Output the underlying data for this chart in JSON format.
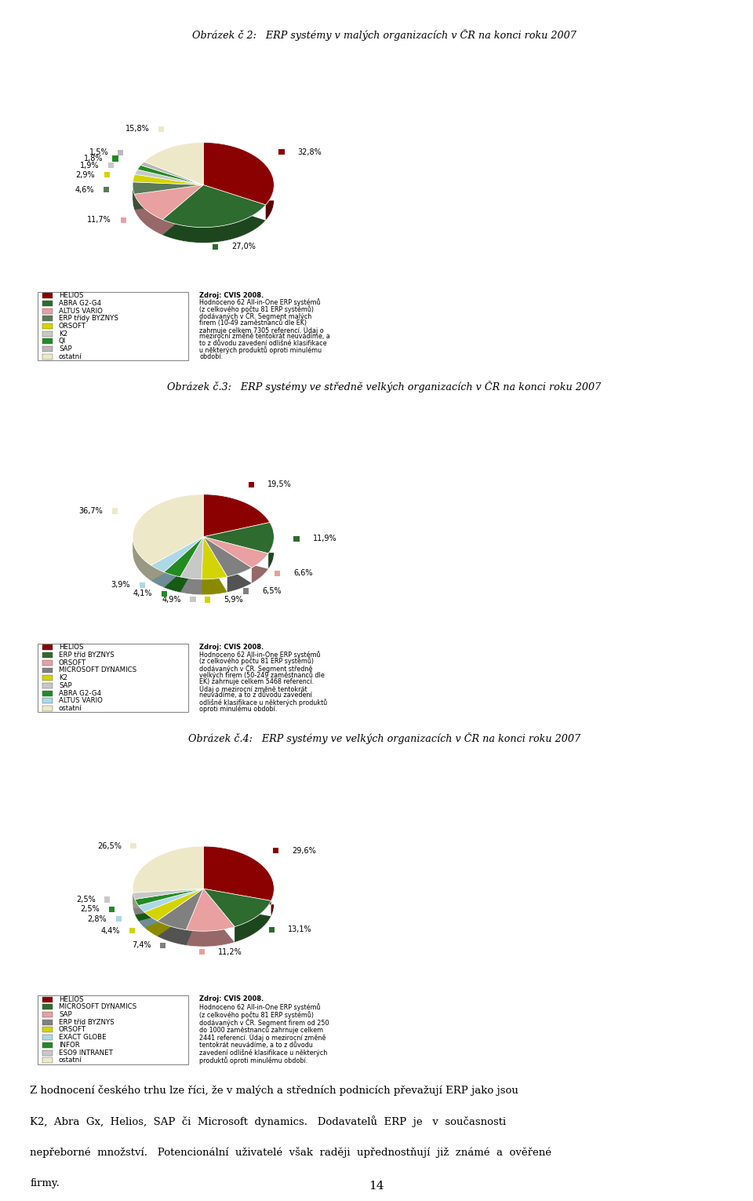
{
  "title1": "Obrázek č 2:   ERP systémy v malých organizacích v ČR na konci roku 2007",
  "title2": "Obrázek č.3:   ERP systémy ve středně velkých organizacích v ČR na konci roku 2007",
  "title3": "Obrázek č.4:   ERP systémy ve velkých organizacích v ČR na konci roku 2007",
  "pie1_values": [
    32.8,
    27.0,
    11.7,
    4.6,
    2.9,
    1.9,
    1.8,
    1.5,
    15.8
  ],
  "pie1_labels": [
    "32,8%",
    "27,0%",
    "11,7%",
    "4,6%",
    "2,9%",
    "1,9%",
    "1,8%",
    "1,5%",
    "15,8%"
  ],
  "pie1_colors": [
    "#8B0000",
    "#2E6B2E",
    "#E8A0A0",
    "#5A7A5A",
    "#D4D400",
    "#C8C8C8",
    "#228B22",
    "#B8B8B8",
    "#EDE8C8"
  ],
  "pie1_legend": [
    "HELIOS",
    "ABRA G2-G4",
    "ALTUS VARIO",
    "ERP třídy BYZNYS",
    "ORSOFT",
    "K2",
    "QI",
    "SAP",
    "ostatní"
  ],
  "pie1_legend_colors": [
    "#8B0000",
    "#2E6B2E",
    "#E8A0A0",
    "#5A7A5A",
    "#D4D400",
    "#C8C8C8",
    "#228B22",
    "#B8B8B8",
    "#EDE8C8"
  ],
  "pie1_source": "Zdroj: CVIS 2008.\nHodnoceno 62 All-in-One ERP systémů\n(z celkového počtu 81 ERP systémů)\ndodávaných v ČR. Segment malých\nfirem (10-49 zaměstnanců dle EK)\nzahrnuje celkem 7305 referencí. Údaj o\nmezirocní změně tentokrát neuvádíme, a\nto z důvodu zavedení odlišné klasifikace\nu některých produktů oproti minulému\nobdobí.",
  "pie2_values": [
    19.5,
    11.9,
    6.6,
    6.5,
    5.9,
    4.9,
    4.1,
    3.9,
    36.7
  ],
  "pie2_labels": [
    "19,5%",
    "11,9%",
    "6,6%",
    "6,5%",
    "5,9%",
    "4,9%",
    "4,1%",
    "3,9%",
    "36,7%"
  ],
  "pie2_colors": [
    "#8B0000",
    "#2E6B2E",
    "#E8A0A0",
    "#808080",
    "#D4D400",
    "#C8C8C8",
    "#228B22",
    "#ADD8E6",
    "#EDE8C8"
  ],
  "pie2_legend": [
    "HELIOS",
    "ERP tříd BYZNYS",
    "ORSOFT",
    "MICROSOFT DYNAMICS",
    "K2",
    "SAP",
    "ABRA G2-G4",
    "ALTUS VARIO",
    "ostatní"
  ],
  "pie2_legend_colors": [
    "#8B0000",
    "#2E6B2E",
    "#E8A0A0",
    "#808080",
    "#D4D400",
    "#C8C8C8",
    "#228B22",
    "#ADD8E6",
    "#EDE8C8"
  ],
  "pie2_source": "Zdroj: CVIS 2008.\nHodnoceno 62 All-in-One ERP systémů\n(z celkového počtu 81 ERP systémů)\ndodávaných v ČR. Segment středně\nvelkých firem (50-249 zaměstnanců dle\nEK) zahrnuje celkem 5468 referencí.\nÚdaj o mezirocní změně tentokrát\nneuvádíme, a to z důvodu zavedení\nodlišné klasifikace u některých produktů\noproti minulému období.",
  "pie3_values": [
    29.6,
    13.1,
    11.2,
    7.4,
    4.4,
    2.8,
    2.5,
    2.5,
    26.5
  ],
  "pie3_labels": [
    "29,6%",
    "13,1%",
    "11,2%",
    "7,4%",
    "4,4%",
    "2,8%",
    "2,5%",
    "2,5%",
    "26,5%"
  ],
  "pie3_colors": [
    "#8B0000",
    "#2E6B2E",
    "#E8A0A0",
    "#808080",
    "#D4D400",
    "#ADD8E6",
    "#228B22",
    "#C8C8C8",
    "#EDE8C8"
  ],
  "pie3_legend": [
    "HELIOS",
    "MICROSOFT DYNAMICS",
    "SAP",
    "ERP tříd BYZNYS",
    "ORSOFT",
    "EXACT GLOBE",
    "INFOR",
    "ESO9 INTRANET",
    "ostatní"
  ],
  "pie3_legend_colors": [
    "#8B0000",
    "#2E6B2E",
    "#E8A0A0",
    "#808080",
    "#D4D400",
    "#ADD8E6",
    "#228B22",
    "#C8C8C8",
    "#EDE8C8"
  ],
  "pie3_source": "Zdroj: CVIS 2008.\nHodnoceno 62 All-in-One ERP systémů\n(z celkového počtu 81 ERP systémů)\ndodávaných v ČR. Segment firem od 250\ndo 1000 zaměstnanců zahrnuje celkem\n2441 referencí. Údaj o mezirocní změně\ntentokrát neuvádíme, a to z důvodu\nzavedení odlišné klasifikace u některých\nproduktů oproti minulému období.",
  "footer_lines": [
    "Z hodnocení českého trhu lze říci, že v malých a středních podnicích převažují ERP jako jsou",
    "K2,  Abra  Gx,  Helios,  SAP  či  Microsoft  dynamics.   Dodavatelů  ERP  je   v  současnosti",
    "nepřeborné  množství.   Potencionální  uživatelé  však  raději  upřednostňují  již  známé  a  ověřené",
    "firmy."
  ],
  "page_number": "14"
}
